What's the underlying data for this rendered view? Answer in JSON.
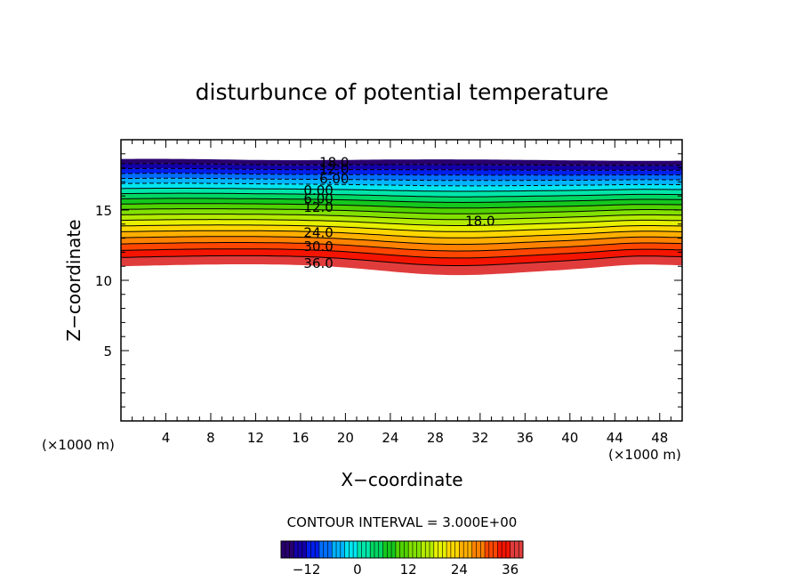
{
  "chart_data": {
    "type": "heatmap",
    "title": "disturbunce of potential temperature",
    "xlabel": "X−coordinate",
    "ylabel": "Z−coordinate",
    "x_unit": "(×1000 m)",
    "z_unit": "(×1000 m)",
    "xlim": [
      0,
      50
    ],
    "ylim": [
      0,
      20
    ],
    "x_ticks": [
      4,
      8,
      12,
      16,
      20,
      24,
      28,
      32,
      36,
      40,
      44,
      48
    ],
    "y_ticks": [
      5,
      10,
      15
    ],
    "contour_interval_text": "CONTOUR INTERVAL = 3.000E+00",
    "contour_interval": 3,
    "value_range": [
      -18,
      39
    ],
    "contour_labels": [
      {
        "text": "18.0",
        "x": 19,
        "z": 18.4
      },
      {
        "text": "12.0",
        "x": 19,
        "z": 17.9
      },
      {
        "text": "6.00",
        "x": 19,
        "z": 17.2
      },
      {
        "text": "0.00",
        "x": 17.6,
        "z": 16.4
      },
      {
        "text": "6.00",
        "x": 17.6,
        "z": 15.8
      },
      {
        "text": "12.0",
        "x": 17.6,
        "z": 15.2
      },
      {
        "text": "18.0",
        "x": 32,
        "z": 14.2
      },
      {
        "text": "24.0",
        "x": 17.6,
        "z": 13.4
      },
      {
        "text": "30.0",
        "x": 17.6,
        "z": 12.4
      },
      {
        "text": "36.0",
        "x": 17.6,
        "z": 11.2
      }
    ],
    "colorbar": {
      "ticks": [
        -12,
        0,
        12,
        24,
        36
      ],
      "tick_labels": [
        "−12",
        "0",
        "12",
        "24",
        "36"
      ],
      "min": -18,
      "max": 39
    }
  }
}
